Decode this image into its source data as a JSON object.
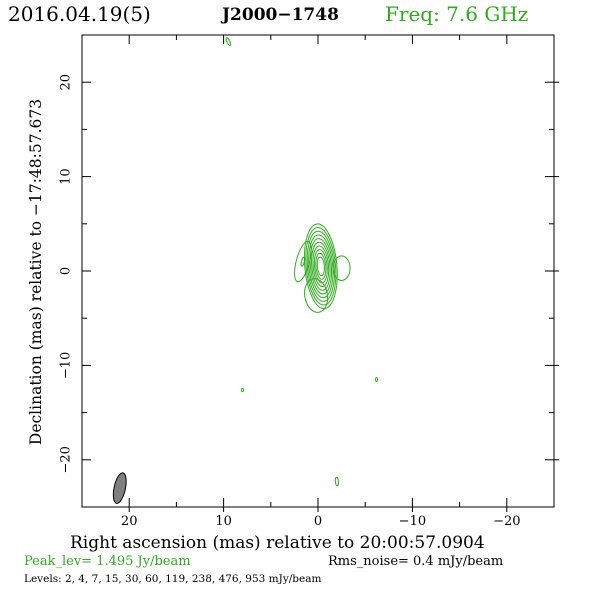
{
  "header": {
    "date": "2016.04.19(5)",
    "source": "J2000−1748",
    "frequency": "Freq: 7.6 GHz"
  },
  "footer": {
    "peak": "Peak_lev=  1.495 Jy/beam",
    "rms": "Rms_noise=  0.4 mJy/beam",
    "levels": "Levels:   2,   4,   7,  15,  30,  60, 119, 238, 476, 953 mJy/beam"
  },
  "colors": {
    "contour": "#33aa22",
    "beam": "#7f7f7f",
    "axis": "#000000"
  },
  "chart_data": {
    "type": "contour",
    "xlabel": "Right ascension (mas) relative to 20:00:57.0904",
    "ylabel": "Declination (mas) relative to −17:48:57.673",
    "xlim": [
      25,
      -25
    ],
    "ylim": [
      -25,
      25
    ],
    "x_ticks": [
      20,
      10,
      0,
      -10,
      -20
    ],
    "y_ticks": [
      20,
      10,
      0,
      -10,
      -20
    ],
    "x_tick_labels": [
      "20",
      "10",
      "0",
      "−10",
      "−20"
    ],
    "y_tick_labels": [
      "20",
      "10",
      "0",
      "−10",
      "−20"
    ],
    "levels_mjy": [
      2,
      4,
      7,
      15,
      30,
      60,
      119,
      238,
      476,
      953
    ],
    "components": [
      {
        "x": -0.3,
        "y": 0.5,
        "a": 4.5,
        "b": 1.7,
        "pa": 5,
        "n": 10
      },
      {
        "x": -2.5,
        "y": 0.3,
        "a": 1.3,
        "b": 0.9,
        "pa": 0,
        "n": 1
      },
      {
        "x": 1.6,
        "y": 1.0,
        "a": 2.2,
        "b": 0.7,
        "pa": -15,
        "n": 2
      },
      {
        "x": 0.2,
        "y": -2.6,
        "a": 1.8,
        "b": 1.2,
        "pa": 10,
        "n": 1
      }
    ],
    "noise_islands": [
      {
        "x": 9.5,
        "y": 24.3,
        "a": 0.45,
        "b": 0.15,
        "pa": 25
      },
      {
        "x": 8.0,
        "y": -12.6,
        "a": 0.18,
        "b": 0.09,
        "pa": 0
      },
      {
        "x": -6.2,
        "y": -11.5,
        "a": 0.2,
        "b": 0.08,
        "pa": 0
      },
      {
        "x": -2.0,
        "y": -22.3,
        "a": 0.45,
        "b": 0.16,
        "pa": 5
      }
    ],
    "beam": {
      "x": 21.0,
      "y": -23.0,
      "major_mas": 3.3,
      "minor_mas": 1.2,
      "pa": -12
    }
  }
}
